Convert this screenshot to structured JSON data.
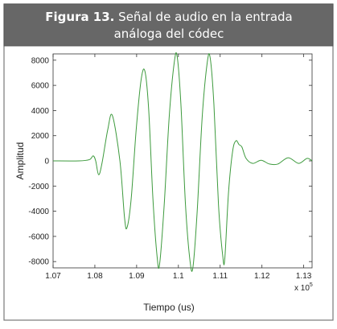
{
  "chart_data": {
    "type": "line",
    "title_label": "Figura 13.",
    "title_lines": [
      "Señal de audio en la entrada",
      "análoga del códec"
    ],
    "x_label": "Tiempo (us)",
    "y_label": "Amplitud",
    "x_multiplier": "x 10",
    "x_multiplier_exponent": "5",
    "color": "#3d9a3d",
    "x": [
      1.07,
      1.0762,
      1.0787,
      1.0796,
      1.0802,
      1.0809,
      1.0817,
      1.0831,
      1.0842,
      1.086,
      1.0871,
      1.0877,
      1.0887,
      1.0899,
      1.0911,
      1.092,
      1.0929,
      1.0939,
      1.0949,
      1.0955,
      1.0966,
      1.0978,
      1.099,
      1.0997,
      1.1006,
      1.1017,
      1.1028,
      1.1035,
      1.1045,
      1.1057,
      1.1069,
      1.1076,
      1.1085,
      1.1096,
      1.1106,
      1.1111,
      1.112,
      1.113,
      1.1138,
      1.1145,
      1.1152,
      1.1162,
      1.1178,
      1.1198,
      1.1218,
      1.1238,
      1.1263,
      1.1288,
      1.1308,
      1.132
    ],
    "values": [
      0,
      0,
      100,
      400,
      0,
      -1100,
      -200,
      2500,
      3600,
      0,
      -4500,
      -5300,
      -3000,
      2500,
      6500,
      7100,
      4000,
      -3000,
      -7600,
      -8200,
      -3500,
      3500,
      7800,
      8300,
      4500,
      -3500,
      -8000,
      -8400,
      -4000,
      3500,
      7800,
      8200,
      4500,
      -3500,
      -7500,
      -7800,
      -2500,
      800,
      1600,
      1300,
      1100,
      200,
      -200,
      50,
      -250,
      -250,
      250,
      -200,
      200,
      0
    ],
    "xlim": [
      1.07,
      1.132
    ],
    "xticks": [
      1.07,
      1.08,
      1.09,
      1.1,
      1.11,
      1.12,
      1.13
    ],
    "ylim": [
      -8500,
      8500
    ],
    "yticks": [
      -8000,
      -6000,
      -4000,
      -2000,
      0,
      2000,
      4000,
      6000,
      8000
    ]
  }
}
